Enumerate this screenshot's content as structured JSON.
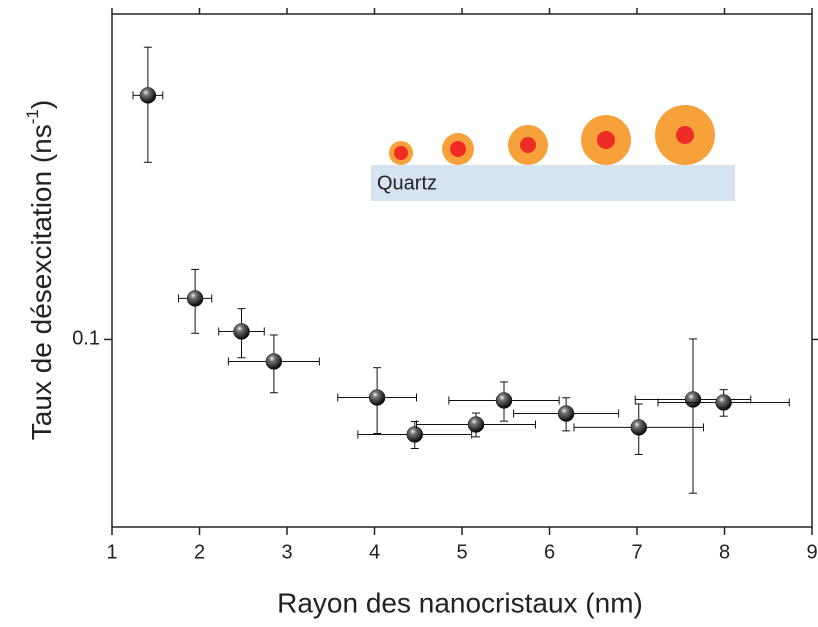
{
  "chart_data": {
    "type": "scatter",
    "xlabel": "Rayon des nanocristaux (nm)",
    "ylabel": {
      "text": "Taux de désexcitation (ns",
      "superscript": "-1",
      "suffix": ")"
    },
    "annotation": "Quartz",
    "x": [
      1.41,
      1.95,
      2.48,
      2.85,
      4.03,
      4.46,
      5.16,
      5.48,
      6.19,
      7.02,
      7.64,
      7.99
    ],
    "xerr": [
      0.17,
      0.19,
      0.26,
      0.52,
      0.45,
      0.65,
      0.68,
      0.63,
      0.6,
      0.74,
      0.66,
      0.75
    ],
    "y": [
      0.407,
      0.1266,
      0.1047,
      0.0881,
      0.0716,
      0.0579,
      0.0613,
      0.0704,
      0.0653,
      0.0603,
      0.0708,
      0.0696
    ],
    "yerr": [
      0.13,
      0.023,
      0.0147,
      0.0145,
      0.0134,
      0.0045,
      0.0042,
      0.0079,
      0.0062,
      0.0087,
      0.0295,
      0.0053
    ],
    "color": "#111111",
    "xlim": [
      1,
      9
    ],
    "xticks": [
      1,
      2,
      3,
      4,
      5,
      6,
      7,
      8,
      9
    ],
    "ylim": [
      0.034,
      0.65
    ],
    "yticks": [
      0.1
    ],
    "ylog": true
  }
}
